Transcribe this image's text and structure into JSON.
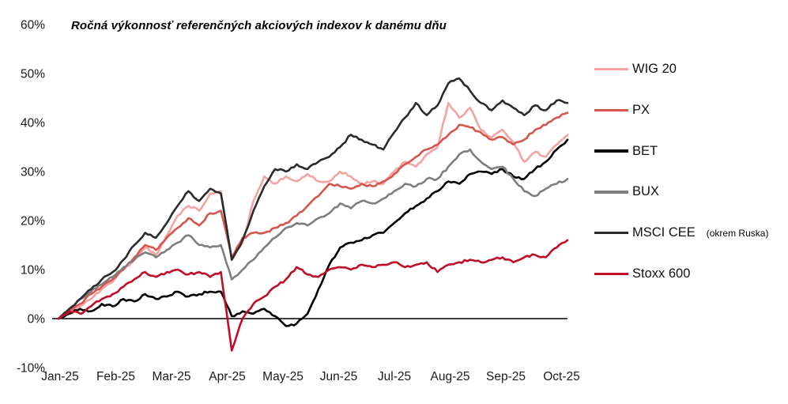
{
  "chart_data": {
    "type": "line",
    "title": "Ročná výkonnosť referenčných akciových indexov k danému dňu",
    "xlabel": "",
    "ylabel": "",
    "ylim": [
      -10,
      60
    ],
    "y_ticks": [
      60,
      50,
      40,
      30,
      20,
      10,
      0,
      -10
    ],
    "y_tick_labels": [
      "60%",
      "50%",
      "40%",
      "30%",
      "20%",
      "10%",
      "0%",
      "-10%"
    ],
    "x_tick_labels": [
      "Jan-25",
      "Feb-25",
      "Mar-25",
      "Apr-25",
      "May-25",
      "Jun-25",
      "Jul-25",
      "Aug-25",
      "Sep-25",
      "Oct-25"
    ],
    "grid": false,
    "zero_line": true,
    "legend_position": "right",
    "x_unit": "months since 2025-01-01, samples every ~6 days (Jan through mid-Oct 2025)",
    "y_unit": "percent return year-to-date",
    "series": [
      {
        "name": "WIG 20",
        "color": "#f4a3a1",
        "values": [
          0,
          1.5,
          2.5,
          4,
          6,
          7.5,
          10,
          12,
          14.5,
          13,
          17,
          21,
          23,
          22,
          25.5,
          26,
          12,
          15.5,
          24,
          29,
          27.5,
          29,
          28,
          29.5,
          28,
          28,
          30,
          29,
          27.5,
          28,
          27.5,
          30,
          32,
          31,
          33.5,
          35,
          44,
          41,
          43,
          38.5,
          37,
          38.5,
          36,
          32,
          34,
          33,
          35.5,
          37.5
        ]
      },
      {
        "name": "PX",
        "color": "#d4564d",
        "values": [
          0,
          1.5,
          3,
          5,
          6.5,
          8,
          10,
          12.5,
          15,
          14,
          16.5,
          18.5,
          20.5,
          19,
          21.5,
          22,
          12.5,
          16.5,
          17.5,
          17.5,
          18.5,
          19.5,
          21,
          23,
          25,
          27.5,
          27,
          26.5,
          27.5,
          27,
          28,
          29.5,
          31.5,
          33,
          34.5,
          35.5,
          37.5,
          39.5,
          39,
          38,
          36.5,
          37,
          35.5,
          36.5,
          38.5,
          39.5,
          41,
          42
        ]
      },
      {
        "name": "BET",
        "color": "#000000",
        "values": [
          0,
          1,
          2,
          1.5,
          3,
          2.5,
          4,
          3.5,
          5,
          4,
          4.5,
          5.5,
          4.5,
          5,
          5.5,
          5.5,
          0.5,
          1.5,
          1,
          2,
          0.5,
          -1.5,
          -1,
          1,
          6,
          11,
          14.5,
          15.5,
          16,
          17,
          17.5,
          19.5,
          21.5,
          23,
          24.5,
          26,
          28,
          27.5,
          29.5,
          30,
          29.5,
          30.5,
          29,
          28.5,
          30.5,
          32,
          34.5,
          36.5
        ]
      },
      {
        "name": "BUX",
        "color": "#7e7e7e",
        "values": [
          0,
          2,
          4,
          5.5,
          7,
          8.5,
          10.5,
          12,
          13.5,
          12.5,
          14,
          15.5,
          17,
          15,
          14.5,
          15,
          8,
          10,
          12,
          14.5,
          16.5,
          18.5,
          19.5,
          19,
          20.5,
          21.5,
          23.5,
          22.5,
          24,
          23.5,
          24.5,
          26,
          27.5,
          27,
          28.5,
          28.5,
          31,
          33.5,
          34.5,
          32,
          30.5,
          31,
          28.5,
          26,
          25,
          26.5,
          27.5,
          28.5
        ]
      },
      {
        "name": "MSCI CEE",
        "note": "(okrem Ruska)",
        "color": "#2b2b2b",
        "values": [
          0,
          2,
          4,
          6,
          8,
          9.5,
          12,
          15,
          17.5,
          16.5,
          19.5,
          23,
          26,
          24,
          26.5,
          25.5,
          12,
          16,
          22,
          27,
          30.5,
          30,
          31.5,
          30.5,
          32,
          33,
          35,
          37.5,
          36.5,
          35.5,
          34.5,
          38,
          41,
          44,
          41.5,
          43.5,
          48,
          49,
          46.5,
          44,
          42.5,
          44.5,
          43,
          41.5,
          43.5,
          42.5,
          44.5,
          44
        ]
      },
      {
        "name": "Stoxx 600",
        "color": "#c00d28",
        "values": [
          0,
          1.5,
          1,
          2.5,
          4,
          5,
          6.5,
          8,
          9.5,
          8.5,
          9.5,
          10,
          9,
          9.5,
          8.5,
          9.5,
          -6.5,
          0,
          3,
          4.5,
          6.5,
          8,
          10.5,
          9,
          8.5,
          10,
          10.5,
          10,
          11,
          10.5,
          11,
          11.5,
          10.5,
          11,
          11.5,
          9.5,
          11,
          11.5,
          12,
          11.5,
          12,
          12.5,
          11.5,
          12.5,
          13,
          12.5,
          14.5,
          16
        ]
      }
    ]
  }
}
